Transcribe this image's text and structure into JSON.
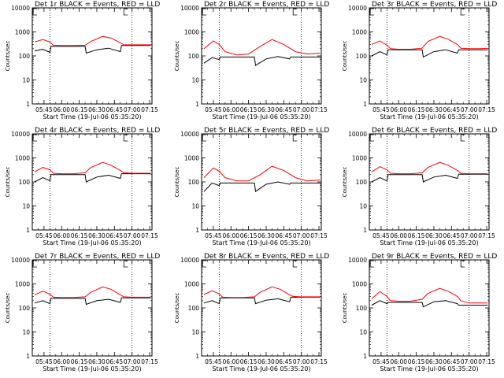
{
  "figure": {
    "time_tick_labels": [
      "05:45",
      "06:00",
      "06:15",
      "06:30",
      "06:45",
      "07:00",
      "07:15"
    ],
    "xlabel": "Start Time (19-Jul-06 05:35:20)",
    "ylabel": "Counts/sec",
    "y_tick_labels": [
      "1",
      "10",
      "100",
      "1000",
      "10000"
    ],
    "colors": {
      "events": "#000000",
      "lld": "#ff0000",
      "axes": "#000000"
    },
    "legend_text": "BLACK = Events, RED = LLD"
  },
  "chart_data": [
    {
      "type": "line",
      "title": "Det 1r BLACK = Events, RED = LLD",
      "xlabel": "Start Time (19-Jul-06 05:35:20)",
      "ylabel": "Counts/sec",
      "x_range": [
        "05:35",
        "07:17"
      ],
      "ylim": [
        1,
        10000
      ],
      "y_scale": "log",
      "grid": false,
      "vertical_markers": [
        "05:50",
        "07:00"
      ],
      "event_markers": [
        "05:34",
        "06:53"
      ],
      "series": [
        {
          "name": "Events",
          "color": "#000000",
          "x": [
            "05:37",
            "05:44",
            "05:50",
            "05:51",
            "06:00",
            "06:10",
            "06:20",
            "06:21",
            "06:30",
            "06:40",
            "06:50",
            "06:51",
            "07:00",
            "07:10",
            "07:16"
          ],
          "y": [
            160,
            190,
            140,
            250,
            250,
            250,
            250,
            130,
            180,
            210,
            150,
            270,
            270,
            270,
            270
          ]
        },
        {
          "name": "LLD",
          "color": "#ff0000",
          "x": [
            "05:37",
            "05:44",
            "05:50",
            "05:53",
            "06:00",
            "06:10",
            "06:20",
            "06:25",
            "06:35",
            "06:42",
            "06:50",
            "06:53",
            "07:00",
            "07:10",
            "07:16"
          ],
          "y": [
            380,
            480,
            380,
            280,
            270,
            270,
            280,
            400,
            650,
            560,
            350,
            290,
            290,
            290,
            290
          ]
        }
      ]
    },
    {
      "type": "line",
      "title": "Det 2r BLACK = Events, RED = LLD",
      "xlabel": "Start Time (19-Jul-06 05:35:20)",
      "ylabel": "Counts/sec",
      "x_range": [
        "05:35",
        "07:17"
      ],
      "ylim": [
        1,
        10000
      ],
      "y_scale": "log",
      "grid": false,
      "vertical_markers": [
        "05:50",
        "07:00"
      ],
      "event_markers": [
        "05:34",
        "06:53"
      ],
      "series": [
        {
          "name": "Events",
          "color": "#000000",
          "x": [
            "05:37",
            "05:44",
            "05:50",
            "05:51",
            "06:00",
            "06:10",
            "06:20",
            "06:21",
            "06:30",
            "06:40",
            "06:50",
            "06:51",
            "07:00",
            "07:10",
            "07:16"
          ],
          "y": [
            50,
            85,
            70,
            90,
            90,
            90,
            90,
            40,
            75,
            95,
            75,
            90,
            90,
            90,
            90
          ]
        },
        {
          "name": "LLD",
          "color": "#ff0000",
          "x": [
            "05:37",
            "05:45",
            "05:50",
            "05:55",
            "06:05",
            "06:15",
            "06:25",
            "06:35",
            "06:45",
            "06:55",
            "07:05",
            "07:16"
          ],
          "y": [
            200,
            420,
            300,
            150,
            110,
            120,
            250,
            480,
            300,
            150,
            120,
            130
          ]
        }
      ]
    },
    {
      "type": "line",
      "title": "Det 3r BLACK = Events, RED = LLD",
      "xlabel": "Start Time (19-Jul-06 05:35:20)",
      "ylabel": "Counts/sec",
      "x_range": [
        "05:35",
        "07:17"
      ],
      "ylim": [
        1,
        10000
      ],
      "y_scale": "log",
      "grid": false,
      "vertical_markers": [
        "05:50",
        "07:00"
      ],
      "event_markers": [
        "05:34",
        "06:53"
      ],
      "series": [
        {
          "name": "Events",
          "color": "#000000",
          "x": [
            "05:37",
            "05:44",
            "05:50",
            "05:51",
            "06:00",
            "06:10",
            "06:20",
            "06:21",
            "06:30",
            "06:40",
            "06:50",
            "06:51",
            "07:00",
            "07:10",
            "07:16"
          ],
          "y": [
            100,
            150,
            110,
            180,
            180,
            180,
            180,
            90,
            150,
            180,
            130,
            180,
            180,
            180,
            180
          ]
        },
        {
          "name": "LLD",
          "color": "#ff0000",
          "x": [
            "05:37",
            "05:44",
            "05:50",
            "05:53",
            "06:00",
            "06:10",
            "06:20",
            "06:25",
            "06:35",
            "06:42",
            "06:50",
            "06:53",
            "07:00",
            "07:10",
            "07:16"
          ],
          "y": [
            300,
            420,
            280,
            200,
            190,
            190,
            210,
            400,
            650,
            500,
            300,
            210,
            200,
            200,
            210
          ]
        }
      ]
    },
    {
      "type": "line",
      "title": "Det 4r BLACK = Events, RED = LLD",
      "xlabel": "Start Time (19-Jul-06 05:35:20)",
      "ylabel": "Counts/sec",
      "x_range": [
        "05:35",
        "07:17"
      ],
      "ylim": [
        1,
        10000
      ],
      "y_scale": "log",
      "grid": false,
      "vertical_markers": [
        "05:50",
        "07:00"
      ],
      "event_markers": [
        "05:34",
        "06:53"
      ],
      "series": [
        {
          "name": "Events",
          "color": "#000000",
          "x": [
            "05:37",
            "05:44",
            "05:50",
            "05:51",
            "06:00",
            "06:10",
            "06:20",
            "06:21",
            "06:30",
            "06:40",
            "06:50",
            "06:51",
            "07:00",
            "07:10",
            "07:16"
          ],
          "y": [
            100,
            150,
            110,
            200,
            200,
            200,
            200,
            100,
            160,
            190,
            140,
            220,
            220,
            220,
            220
          ]
        },
        {
          "name": "LLD",
          "color": "#ff0000",
          "x": [
            "05:37",
            "05:44",
            "05:50",
            "05:53",
            "06:00",
            "06:10",
            "06:20",
            "06:25",
            "06:35",
            "06:42",
            "06:50",
            "06:53",
            "07:00",
            "07:10",
            "07:16"
          ],
          "y": [
            260,
            400,
            320,
            230,
            220,
            220,
            240,
            400,
            650,
            500,
            300,
            240,
            230,
            230,
            230
          ]
        }
      ]
    },
    {
      "type": "line",
      "title": "Det 5r BLACK = Events, RED = LLD",
      "xlabel": "Start Time (19-Jul-06 05:35:20)",
      "ylabel": "Counts/sec",
      "x_range": [
        "05:35",
        "07:17"
      ],
      "ylim": [
        1,
        10000
      ],
      "y_scale": "log",
      "grid": false,
      "vertical_markers": [
        "05:50",
        "07:00"
      ],
      "event_markers": [
        "05:34",
        "06:53"
      ],
      "series": [
        {
          "name": "Events",
          "color": "#000000",
          "x": [
            "05:37",
            "05:44",
            "05:50",
            "05:51",
            "06:00",
            "06:10",
            "06:20",
            "06:21",
            "06:30",
            "06:40",
            "06:50",
            "06:51",
            "07:00",
            "07:10",
            "07:16"
          ],
          "y": [
            40,
            90,
            70,
            90,
            90,
            90,
            90,
            40,
            80,
            100,
            80,
            90,
            90,
            90,
            90
          ]
        },
        {
          "name": "LLD",
          "color": "#ff0000",
          "x": [
            "05:37",
            "05:45",
            "05:50",
            "05:55",
            "06:05",
            "06:15",
            "06:25",
            "06:35",
            "06:45",
            "06:55",
            "07:05",
            "07:16"
          ],
          "y": [
            150,
            380,
            280,
            150,
            110,
            110,
            200,
            450,
            300,
            150,
            110,
            120
          ]
        }
      ]
    },
    {
      "type": "line",
      "title": "Det 6r BLACK = Events, RED = LLD",
      "xlabel": "Start Time (19-Jul-06 05:35:20)",
      "ylabel": "Counts/sec",
      "x_range": [
        "05:35",
        "07:17"
      ],
      "ylim": [
        1,
        10000
      ],
      "y_scale": "log",
      "grid": false,
      "vertical_markers": [
        "05:50",
        "07:00"
      ],
      "event_markers": [
        "05:34",
        "06:53"
      ],
      "series": [
        {
          "name": "Events",
          "color": "#000000",
          "x": [
            "05:37",
            "05:44",
            "05:50",
            "05:51",
            "06:00",
            "06:10",
            "06:20",
            "06:21",
            "06:30",
            "06:40",
            "06:50",
            "06:51",
            "07:00",
            "07:10",
            "07:16"
          ],
          "y": [
            100,
            150,
            110,
            200,
            200,
            200,
            200,
            100,
            160,
            190,
            140,
            210,
            210,
            210,
            210
          ]
        },
        {
          "name": "LLD",
          "color": "#ff0000",
          "x": [
            "05:37",
            "05:44",
            "05:50",
            "05:53",
            "06:00",
            "06:10",
            "06:20",
            "06:25",
            "06:35",
            "06:42",
            "06:50",
            "06:53",
            "07:00",
            "07:10",
            "07:16"
          ],
          "y": [
            260,
            430,
            320,
            230,
            220,
            220,
            240,
            400,
            650,
            500,
            300,
            230,
            220,
            220,
            220
          ]
        }
      ]
    },
    {
      "type": "line",
      "title": "Det 7r BLACK = Events, RED = LLD",
      "xlabel": "Start Time (19-Jul-06 05:35:20)",
      "ylabel": "Counts/sec",
      "x_range": [
        "05:35",
        "07:17"
      ],
      "ylim": [
        1,
        10000
      ],
      "y_scale": "log",
      "grid": false,
      "vertical_markers": [
        "05:50",
        "07:00"
      ],
      "event_markers": [
        "05:34",
        "06:53"
      ],
      "series": [
        {
          "name": "Events",
          "color": "#000000",
          "x": [
            "05:37",
            "05:44",
            "05:50",
            "05:51",
            "06:00",
            "06:10",
            "06:20",
            "06:21",
            "06:30",
            "06:40",
            "06:50",
            "06:51",
            "07:00",
            "07:10",
            "07:16"
          ],
          "y": [
            160,
            200,
            150,
            250,
            250,
            250,
            250,
            140,
            200,
            230,
            170,
            260,
            260,
            260,
            260
          ]
        },
        {
          "name": "LLD",
          "color": "#ff0000",
          "x": [
            "05:37",
            "05:44",
            "05:50",
            "05:53",
            "06:00",
            "06:10",
            "06:20",
            "06:25",
            "06:35",
            "06:42",
            "06:50",
            "06:53",
            "07:00",
            "07:10",
            "07:16"
          ],
          "y": [
            350,
            500,
            370,
            280,
            270,
            270,
            290,
            450,
            750,
            600,
            350,
            290,
            280,
            280,
            280
          ]
        }
      ]
    },
    {
      "type": "line",
      "title": "Det 8r BLACK = Events, RED = LLD",
      "xlabel": "Start Time (19-Jul-06 05:35:20)",
      "ylabel": "Counts/sec",
      "x_range": [
        "05:35",
        "07:17"
      ],
      "ylim": [
        1,
        10000
      ],
      "y_scale": "log",
      "grid": false,
      "vertical_markers": [
        "05:50",
        "07:00"
      ],
      "event_markers": [
        "05:34",
        "06:53"
      ],
      "series": [
        {
          "name": "Events",
          "color": "#000000",
          "x": [
            "05:37",
            "05:44",
            "05:50",
            "05:51",
            "06:00",
            "06:10",
            "06:20",
            "06:21",
            "06:30",
            "06:40",
            "06:50",
            "06:51",
            "07:00",
            "07:10",
            "07:16"
          ],
          "y": [
            160,
            200,
            150,
            260,
            260,
            260,
            260,
            150,
            210,
            240,
            180,
            280,
            280,
            280,
            280
          ]
        },
        {
          "name": "LLD",
          "color": "#ff0000",
          "x": [
            "05:37",
            "05:44",
            "05:50",
            "05:53",
            "06:00",
            "06:10",
            "06:20",
            "06:25",
            "06:35",
            "06:42",
            "06:50",
            "06:53",
            "07:00",
            "07:10",
            "07:16"
          ],
          "y": [
            360,
            520,
            380,
            280,
            270,
            270,
            290,
            450,
            750,
            600,
            350,
            300,
            290,
            290,
            290
          ]
        }
      ]
    },
    {
      "type": "line",
      "title": "Det 9r BLACK = Events, RED = LLD",
      "xlabel": "Start Time (19-Jul-06 05:35:20)",
      "ylabel": "Counts/sec",
      "x_range": [
        "05:35",
        "07:17"
      ],
      "ylim": [
        1,
        10000
      ],
      "y_scale": "log",
      "grid": false,
      "vertical_markers": [
        "05:50",
        "07:00"
      ],
      "event_markers": [
        "05:34",
        "06:53"
      ],
      "series": [
        {
          "name": "Events",
          "color": "#000000",
          "x": [
            "05:37",
            "05:44",
            "05:50",
            "05:51",
            "06:00",
            "06:10",
            "06:20",
            "06:21",
            "06:30",
            "06:40",
            "06:50",
            "06:51",
            "07:00",
            "07:10",
            "07:16"
          ],
          "y": [
            130,
            200,
            150,
            170,
            170,
            170,
            170,
            110,
            180,
            200,
            150,
            130,
            130,
            130,
            130
          ]
        },
        {
          "name": "LLD",
          "color": "#ff0000",
          "x": [
            "05:37",
            "05:44",
            "05:50",
            "05:53",
            "06:00",
            "06:10",
            "06:20",
            "06:25",
            "06:35",
            "06:42",
            "06:50",
            "06:53",
            "07:00",
            "07:10",
            "07:16"
          ],
          "y": [
            240,
            480,
            300,
            200,
            190,
            190,
            230,
            400,
            650,
            500,
            300,
            200,
            160,
            160,
            160
          ]
        }
      ]
    }
  ]
}
